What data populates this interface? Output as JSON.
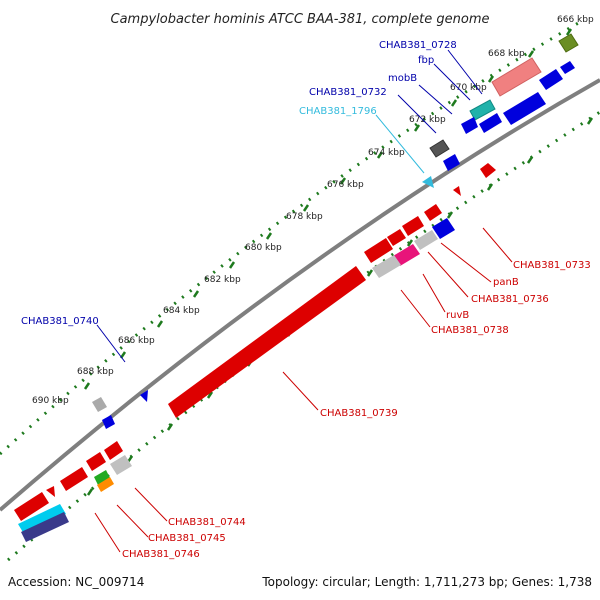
{
  "title": "Campylobacter hominis ATCC BAA-381, complete genome",
  "footer": {
    "accession": "Accession: NC_009714",
    "summary": "Topology: circular; Length: 1,711,273 bp; Genes: 1,738"
  },
  "colors": {
    "backbone": "#808080",
    "tick": "#1e7a1e",
    "forward_gene": "#0000dd",
    "reverse_gene": "#dd0000"
  },
  "kbp_labels": [
    "666 kbp",
    "668 kbp",
    "670 kbp",
    "672 kbp",
    "674 kbp",
    "676 kbp",
    "678 kbp",
    "680 kbp",
    "682 kbp",
    "684 kbp",
    "686 kbp",
    "688 kbp",
    "690 kbp"
  ],
  "gene_labels": [
    {
      "name": "CHAB381_0728",
      "color": "#0000aa"
    },
    {
      "name": "fbp",
      "color": "#0000aa"
    },
    {
      "name": "mobB",
      "color": "#0000aa"
    },
    {
      "name": "CHAB381_0732",
      "color": "#0000aa"
    },
    {
      "name": "CHAB381_1796",
      "color": "#33bbdd"
    },
    {
      "name": "CHAB381_0740",
      "color": "#0000aa"
    },
    {
      "name": "CHAB381_0733",
      "color": "#cc0000"
    },
    {
      "name": "panB",
      "color": "#cc0000"
    },
    {
      "name": "CHAB381_0736",
      "color": "#cc0000"
    },
    {
      "name": "ruvB",
      "color": "#cc0000"
    },
    {
      "name": "CHAB381_0738",
      "color": "#cc0000"
    },
    {
      "name": "CHAB381_0739",
      "color": "#cc0000"
    },
    {
      "name": "CHAB381_0744",
      "color": "#cc0000"
    },
    {
      "name": "CHAB381_0745",
      "color": "#cc0000"
    },
    {
      "name": "CHAB381_0746",
      "color": "#cc0000"
    }
  ]
}
